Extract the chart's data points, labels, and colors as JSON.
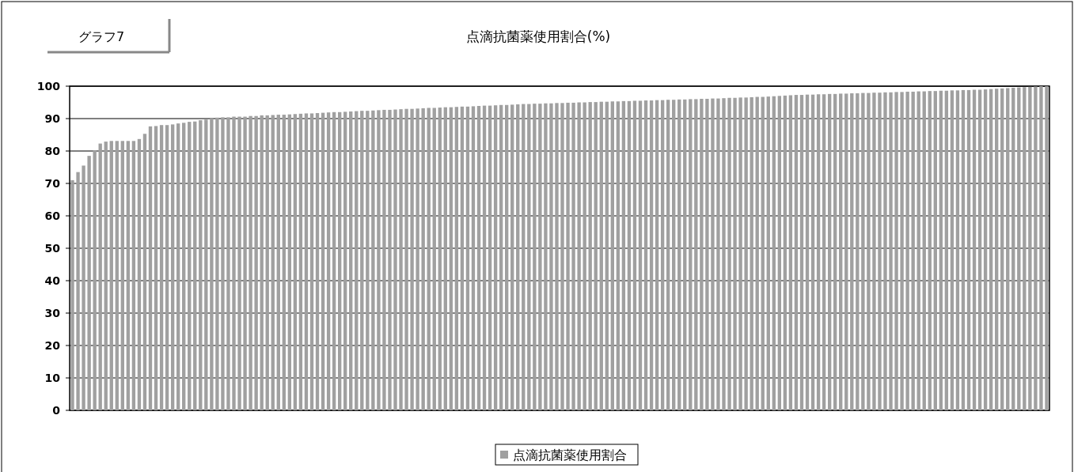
{
  "chart_data": {
    "type": "bar",
    "title": "点滴抗菌薬使用割合(%)",
    "annotations": [
      "グラフ7"
    ],
    "categories": [
      null,
      null,
      null,
      null,
      null,
      null,
      null,
      null,
      null,
      null,
      null,
      null,
      null,
      null,
      null,
      null,
      null,
      null,
      null,
      null,
      null,
      null,
      null,
      null,
      null,
      null,
      null,
      null,
      null,
      null,
      null,
      null,
      null,
      null,
      null,
      null,
      null,
      null,
      null,
      null,
      null,
      null,
      null,
      null,
      null,
      null,
      null,
      null,
      null,
      null,
      null,
      null,
      null,
      null,
      null,
      null,
      null,
      null,
      null,
      null,
      null,
      null,
      null,
      null,
      null,
      null,
      null,
      null,
      null,
      null,
      null,
      null,
      null,
      null,
      null,
      null,
      null,
      null,
      null,
      null,
      null,
      null,
      null,
      null,
      null,
      null,
      null,
      null,
      null,
      null,
      null,
      null,
      null,
      null,
      null,
      null,
      null,
      null,
      null,
      null,
      null,
      null,
      null,
      null,
      null,
      null,
      null,
      null,
      null,
      null,
      null,
      null,
      null,
      null,
      null,
      null,
      null,
      null,
      null,
      null,
      null,
      null,
      null,
      null,
      null,
      null,
      null,
      null,
      null,
      null,
      null,
      null,
      null,
      null,
      null,
      null,
      null,
      null,
      null,
      null,
      null,
      null,
      null,
      null,
      null,
      null,
      null,
      null,
      null,
      null,
      null,
      null,
      null,
      null,
      null,
      null,
      null,
      null,
      null,
      null,
      null,
      null,
      null,
      null,
      null,
      null,
      null,
      null,
      null,
      null,
      null,
      null,
      null,
      null,
      null,
      null
    ],
    "series": [
      {
        "name": "点滴抗菌薬使用割合",
        "color": "#a0a0a0",
        "values": [
          71,
          73.5,
          75.5,
          78.5,
          80.2,
          82.3,
          82.9,
          83.1,
          83.1,
          83.1,
          83.1,
          83.1,
          83.7,
          85.3,
          87.6,
          87.7,
          88.0,
          88.0,
          88.2,
          88.5,
          88.7,
          89.0,
          89.1,
          89.5,
          89.7,
          90.1,
          90.3,
          90.4,
          90.4,
          90.6,
          90.6,
          90.6,
          90.8,
          90.8,
          91.0,
          91.0,
          91.1,
          91.2,
          91.2,
          91.3,
          91.4,
          91.5,
          91.6,
          91.6,
          91.7,
          91.8,
          91.9,
          92.0,
          92.0,
          92.1,
          92.2,
          92.3,
          92.4,
          92.4,
          92.5,
          92.6,
          92.7,
          92.7,
          92.8,
          92.9,
          93.0,
          93.0,
          93.1,
          93.2,
          93.3,
          93.3,
          93.4,
          93.5,
          93.5,
          93.6,
          93.7,
          93.7,
          93.8,
          93.9,
          94.0,
          94.0,
          94.1,
          94.2,
          94.2,
          94.3,
          94.4,
          94.5,
          94.5,
          94.6,
          94.6,
          94.7,
          94.7,
          94.8,
          94.8,
          94.9,
          94.9,
          95.0,
          95.0,
          95.1,
          95.1,
          95.2,
          95.2,
          95.3,
          95.3,
          95.4,
          95.4,
          95.5,
          95.5,
          95.6,
          95.6,
          95.7,
          95.7,
          95.8,
          95.8,
          95.9,
          95.9,
          96.0,
          96.0,
          96.1,
          96.1,
          96.2,
          96.2,
          96.3,
          96.4,
          96.4,
          96.5,
          96.5,
          96.6,
          96.7,
          96.7,
          96.8,
          96.9,
          97.0,
          97.1,
          97.2,
          97.3,
          97.3,
          97.4,
          97.4,
          97.5,
          97.5,
          97.6,
          97.6,
          97.7,
          97.7,
          97.8,
          97.8,
          97.9,
          97.9,
          98.0,
          98.0,
          98.1,
          98.1,
          98.2,
          98.2,
          98.3,
          98.3,
          98.4,
          98.4,
          98.5,
          98.5,
          98.6,
          98.6,
          98.7,
          98.7,
          98.8,
          98.8,
          98.9,
          98.9,
          99.0,
          99.1,
          99.2,
          99.3,
          99.4,
          99.5,
          99.6,
          99.7,
          99.8,
          99.9,
          100,
          100
        ]
      }
    ],
    "ylim": [
      0,
      100
    ],
    "yticks": [
      0,
      10,
      20,
      30,
      40,
      50,
      60,
      70,
      80,
      90,
      100
    ],
    "grid": "y",
    "legend": "bottom"
  }
}
